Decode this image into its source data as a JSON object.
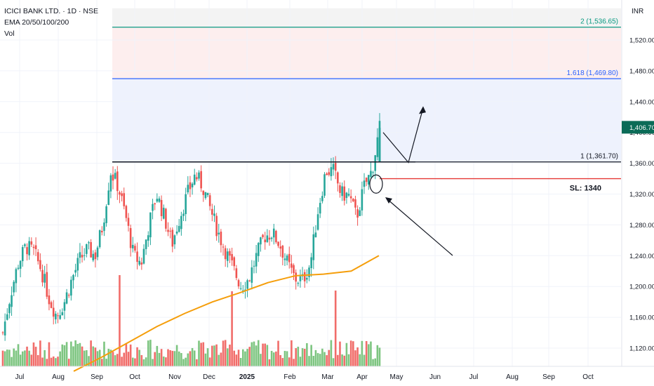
{
  "legend": {
    "symbol": "ICICI BANK LTD. · 1D · NSE",
    "indicator": "EMA 20/50/100/200",
    "volume": "Vol"
  },
  "currency": "INR",
  "colors": {
    "up": "#26a69a",
    "down": "#ef5350",
    "volume_up": "#66bb6a",
    "volume_down": "#ef5350",
    "ema": "#f59e0b",
    "fib_1": "#131722",
    "fib_1618": "#2962ff",
    "fib_2": "#089981",
    "stop_loss": "#e53935",
    "zone_red": "#fdeeee",
    "zone_blue": "#eef2fd",
    "zone_grey": "#f3f3f3",
    "last_price_bg": "#0b6b57"
  },
  "chart_data": {
    "type": "candlestick",
    "title": "ICICI BANK LTD. · 1D · NSE",
    "y_axis": {
      "range": [
        1090,
        1548
      ],
      "ticks": [
        "1,120.00",
        "1,160.00",
        "1,200.00",
        "1,240.00",
        "1,280.00",
        "1,320.00",
        "1,360.00",
        "1,400.00",
        "1,440.00",
        "1,480.00",
        "1,520.00"
      ]
    },
    "x_axis": {
      "ticks": [
        "Jul",
        "Aug",
        "Sep",
        "Oct",
        "Nov",
        "Dec",
        "2025",
        "Feb",
        "Mar",
        "Apr",
        "May",
        "Jun",
        "Jul",
        "Aug",
        "Sep",
        "Oct"
      ]
    },
    "last_price": "1,406.70",
    "fib_levels": [
      {
        "label": "1 (1,361.70)",
        "value": 1361.7
      },
      {
        "label": "1.618 (1,469.80)",
        "value": 1469.8
      },
      {
        "label": "2 (1,536.65)",
        "value": 1536.65
      }
    ],
    "stop_loss": {
      "label": "SL: 1340",
      "value": 1340
    },
    "ema_200": [
      1090,
      1108,
      1128,
      1148,
      1165,
      1180,
      1192,
      1205,
      1214,
      1216,
      1220,
      1240
    ],
    "close_path": [
      1140,
      1190,
      1230,
      1252,
      1245,
      1222,
      1185,
      1162,
      1180,
      1210,
      1235,
      1248,
      1240,
      1280,
      1350,
      1330,
      1290,
      1240,
      1230,
      1280,
      1320,
      1290,
      1255,
      1290,
      1320,
      1345,
      1330,
      1300,
      1270,
      1245,
      1222,
      1200,
      1210,
      1240,
      1265,
      1270,
      1255,
      1230,
      1210,
      1208,
      1230,
      1300,
      1350,
      1350,
      1320,
      1318,
      1290,
      1330,
      1350,
      1406
    ],
    "volume_spikes": [
      "Sep",
      "Dec",
      "Mar"
    ],
    "annotations": [
      "projected path arrow",
      "pointer arrow to retest circle"
    ]
  }
}
